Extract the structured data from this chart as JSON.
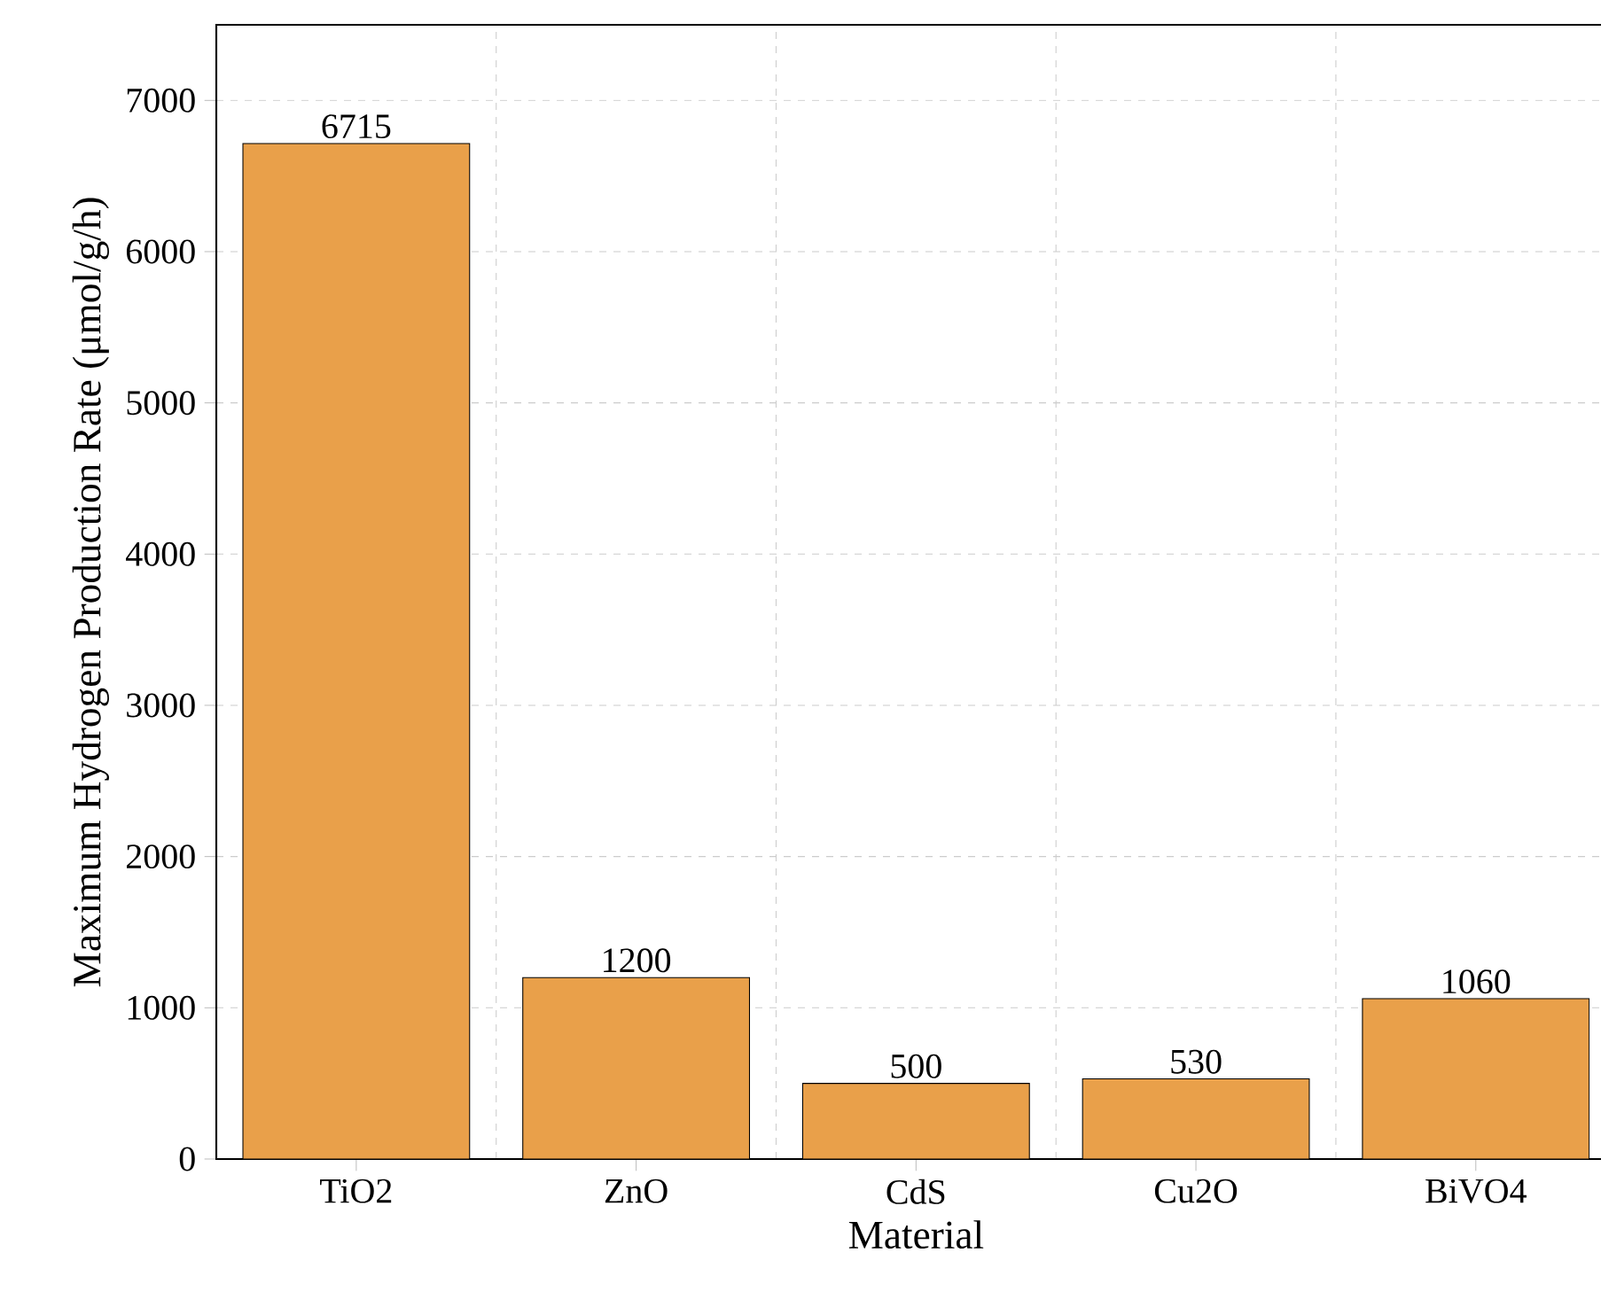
{
  "chart_data": {
    "type": "bar",
    "xlabel": "Material",
    "ylabel": "Maximum Hydrogen Production Rate (μmol/g/h)",
    "categories": [
      "TiO2",
      "ZnO",
      "CdS",
      "Cu2O",
      "BiVO4"
    ],
    "values": [
      6715,
      1200,
      500,
      530,
      1060
    ],
    "color": "#e9a04a",
    "ylim": [
      0,
      7500
    ],
    "yticks": [
      0,
      1000,
      2000,
      3000,
      4000,
      5000,
      6000,
      7000
    ],
    "grid": true,
    "data_labels": true
  }
}
